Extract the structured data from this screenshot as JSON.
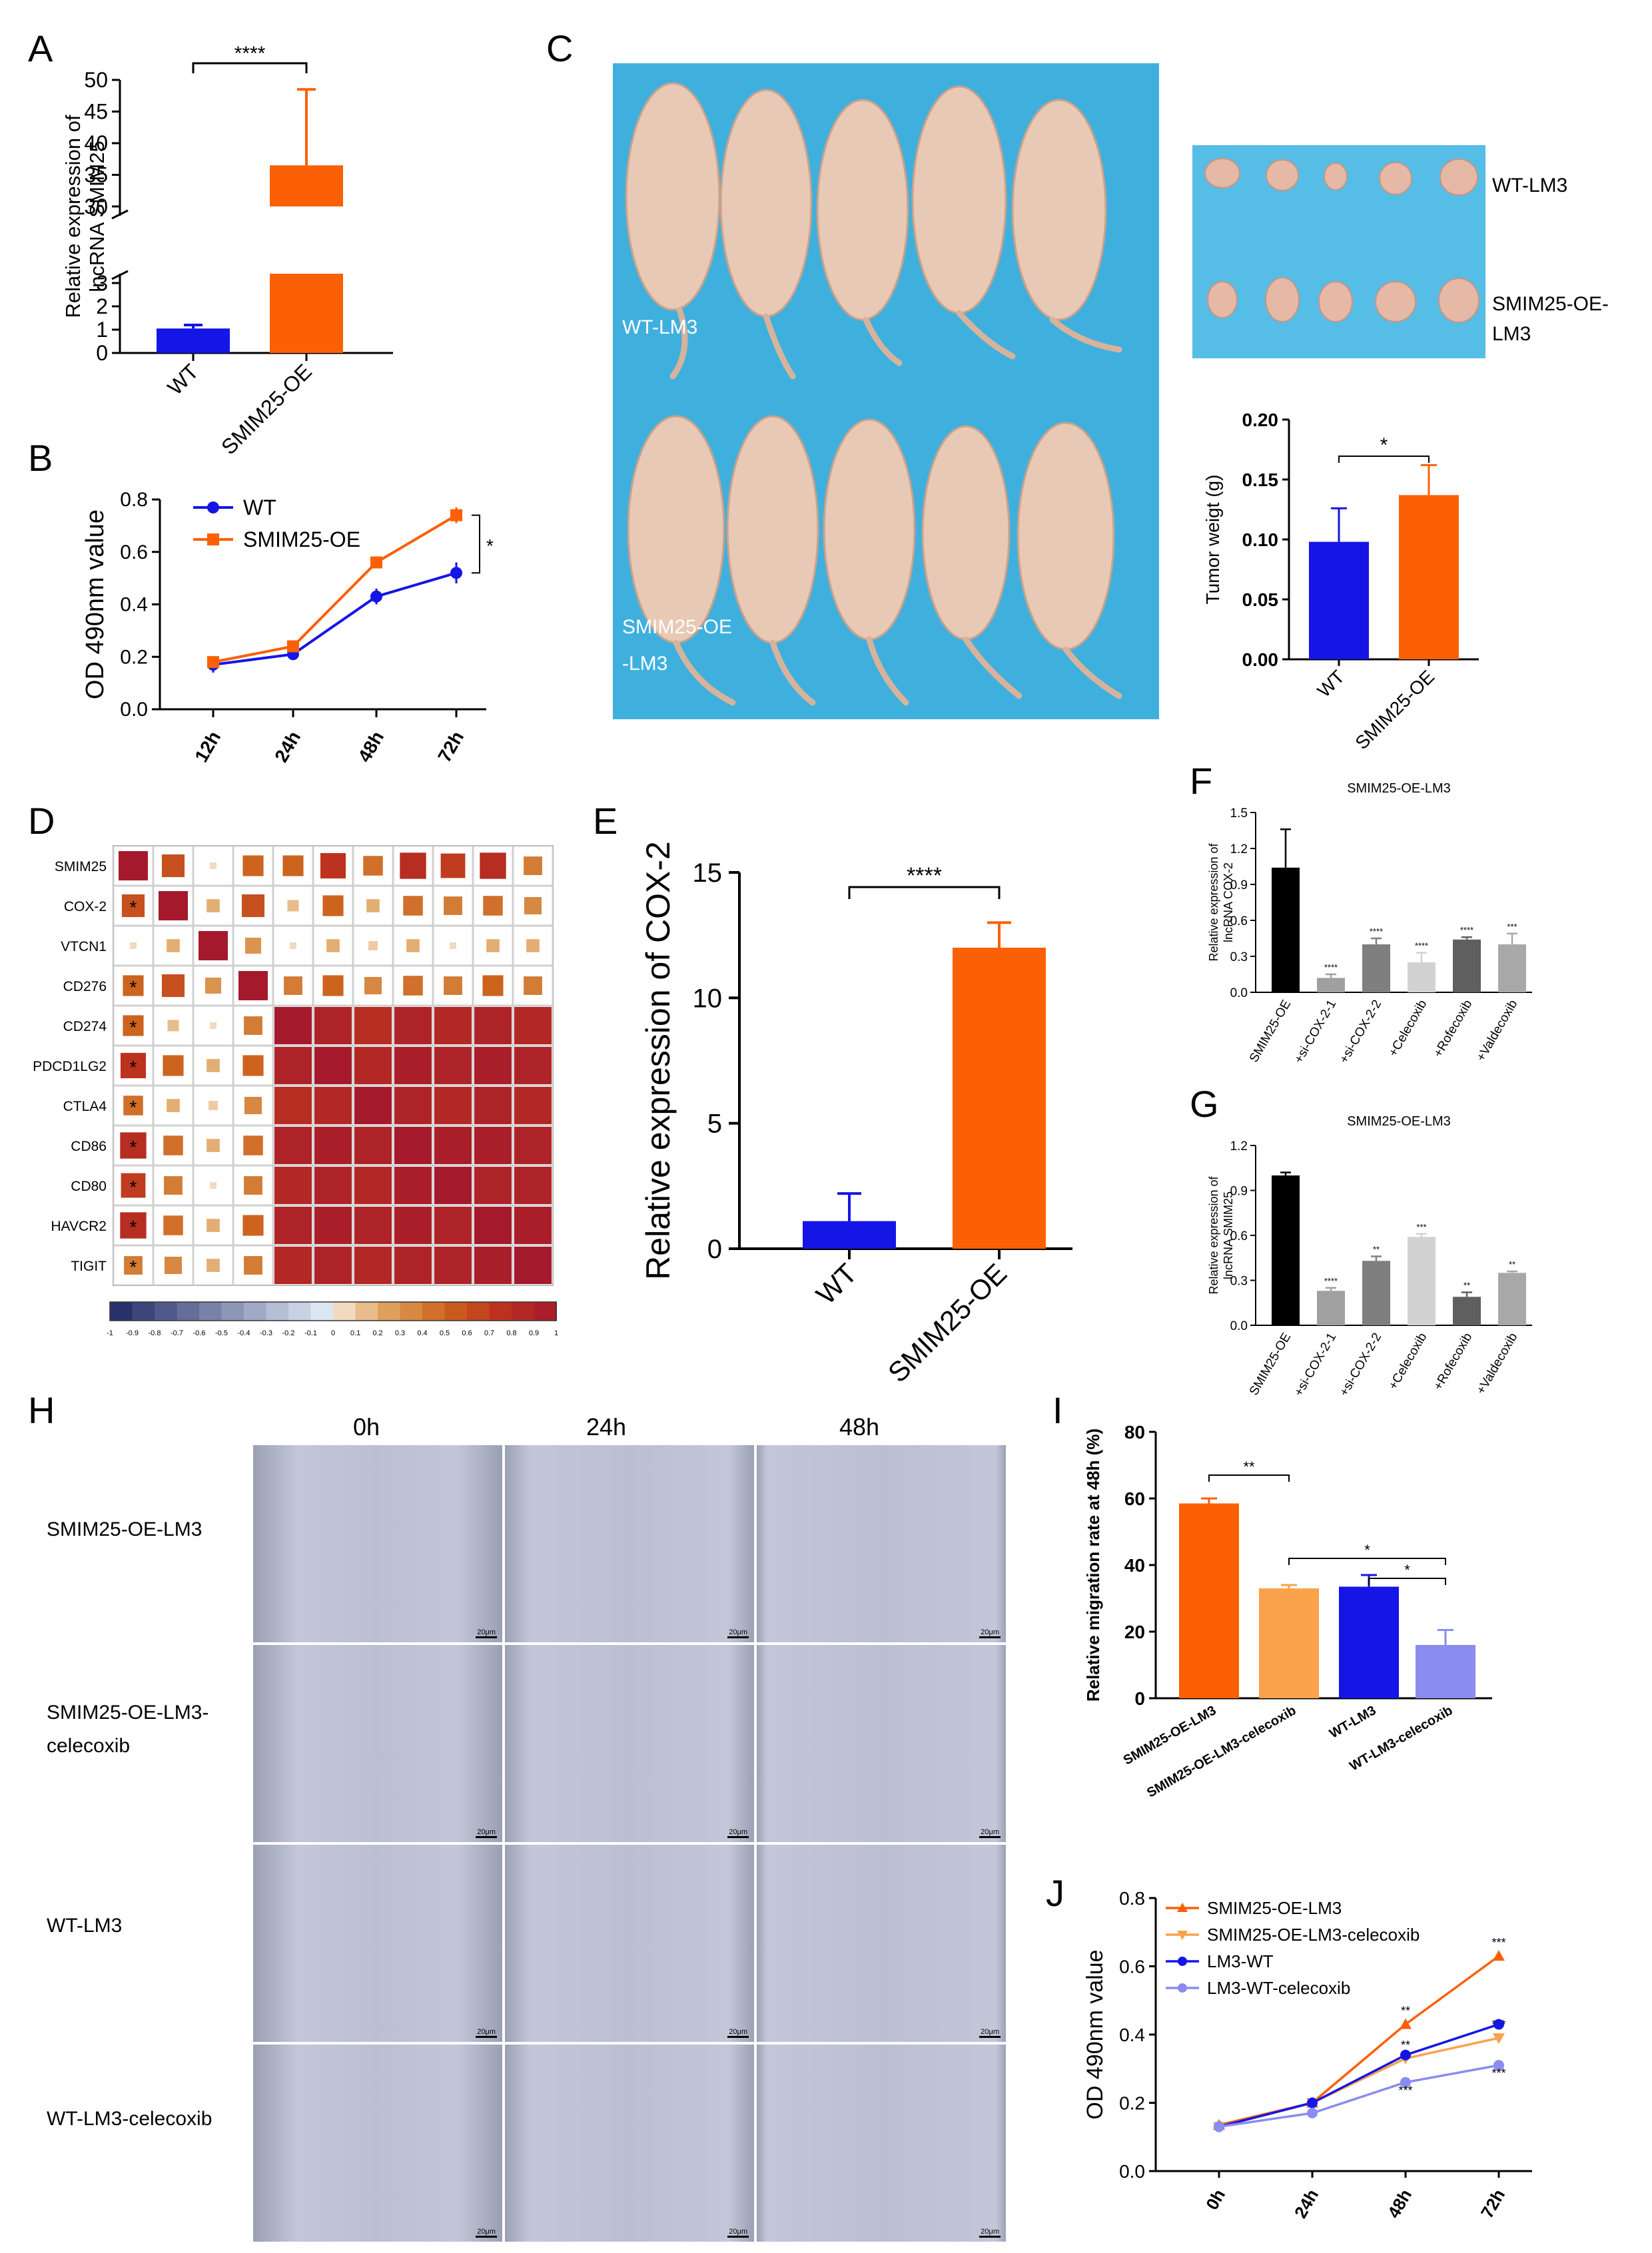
{
  "figure": {
    "panel_labels": [
      "A",
      "B",
      "C",
      "D",
      "E",
      "F",
      "G",
      "H",
      "I",
      "J"
    ]
  },
  "colors": {
    "blue": "#1515e6",
    "orange": "#fb6006",
    "lightorange": "#fba24c",
    "lightblue": "#8a8cf0",
    "black": "#000000",
    "photo_bg": "#3fb0de",
    "scratch_bg": "#b8bcd3"
  },
  "chart_data": [
    {
      "id": "A",
      "type": "bar",
      "categories": [
        "WT",
        "SMIM25-OE"
      ],
      "values": [
        1.05,
        36.5
      ],
      "errors": [
        0.15,
        12
      ],
      "ylabel": "Relative expression of lncRNA SMIM25",
      "yticks_low": [
        "0",
        "1",
        "2",
        "3"
      ],
      "yticks_high": [
        "30",
        "35",
        "40",
        "45",
        "50"
      ],
      "significance": "****"
    },
    {
      "id": "B",
      "type": "line",
      "x": [
        "12h",
        "24h",
        "48h",
        "72h"
      ],
      "series": [
        {
          "name": "WT",
          "values": [
            0.17,
            0.21,
            0.43,
            0.52
          ],
          "errors": [
            0.03,
            0.01,
            0.03,
            0.04
          ]
        },
        {
          "name": "SMIM25-OE",
          "values": [
            0.18,
            0.24,
            0.56,
            0.74
          ],
          "errors": [
            0.02,
            0.01,
            0.02,
            0.03
          ]
        }
      ],
      "ylabel": "OD 490nm value",
      "ylim": [
        0,
        0.8
      ],
      "yticks": [
        "0.0",
        "0.2",
        "0.4",
        "0.6",
        "0.8"
      ],
      "significance": "*"
    },
    {
      "id": "C",
      "type": "bar",
      "categories": [
        "WT",
        "SMIM25-OE"
      ],
      "values": [
        0.098,
        0.137
      ],
      "errors": [
        0.028,
        0.025
      ],
      "ylabel": "Tumor weigt (g)",
      "ylim": [
        0,
        0.2
      ],
      "yticks": [
        "0.00",
        "0.05",
        "0.10",
        "0.15",
        "0.20"
      ],
      "significance": "*"
    },
    {
      "id": "D",
      "type": "heatmap",
      "labels": [
        "SMIM25",
        "COX-2",
        "VTCN1",
        "CD276",
        "CD274",
        "PDCD1LG2",
        "CTLA4",
        "CD86",
        "CD80",
        "HAVCR2",
        "TIGIT"
      ],
      "matrix": [
        [
          1,
          0.6,
          0.05,
          0.5,
          0.5,
          0.75,
          0.45,
          0.8,
          0.7,
          0.8,
          0.4
        ],
        [
          0.6,
          1,
          0.2,
          0.6,
          0.15,
          0.5,
          0.2,
          0.45,
          0.4,
          0.45,
          0.35
        ],
        [
          0.05,
          0.2,
          1,
          0.3,
          0.05,
          0.2,
          0.1,
          0.2,
          0.05,
          0.2,
          0.2
        ],
        [
          0.5,
          0.6,
          0.3,
          1,
          0.4,
          0.5,
          0.35,
          0.45,
          0.4,
          0.5,
          0.4
        ],
        [
          0.5,
          0.15,
          0.05,
          0.4,
          1,
          0.9,
          0.8,
          0.9,
          0.85,
          0.9,
          0.85
        ],
        [
          0.75,
          0.5,
          0.2,
          0.5,
          0.9,
          1,
          0.85,
          0.95,
          0.9,
          0.95,
          0.9
        ],
        [
          0.45,
          0.2,
          0.1,
          0.35,
          0.8,
          0.85,
          1,
          0.9,
          0.85,
          0.9,
          0.85
        ],
        [
          0.8,
          0.45,
          0.2,
          0.45,
          0.9,
          0.95,
          0.9,
          1,
          0.95,
          0.95,
          0.9
        ],
        [
          0.7,
          0.4,
          0.05,
          0.4,
          0.85,
          0.9,
          0.85,
          0.95,
          1,
          0.9,
          0.9
        ],
        [
          0.8,
          0.45,
          0.2,
          0.5,
          0.9,
          0.95,
          0.9,
          0.95,
          0.9,
          1,
          0.95
        ],
        [
          0.4,
          0.35,
          0.2,
          0.4,
          0.85,
          0.9,
          0.85,
          0.9,
          0.9,
          0.95,
          1
        ]
      ],
      "star_rows": [
        1,
        3,
        4,
        5,
        6,
        7,
        8,
        9,
        10
      ],
      "star_label": "*",
      "scale_ticks": [
        "-1",
        "-0.9",
        "-0.8",
        "-0.7",
        "-0.6",
        "-0.5",
        "-0.4",
        "-0.3",
        "-0.2",
        "-0.1",
        "0",
        "0.1",
        "0.2",
        "0.3",
        "0.4",
        "0.5",
        "0.6",
        "0.7",
        "0.8",
        "0.9",
        "1"
      ]
    },
    {
      "id": "E",
      "type": "bar",
      "categories": [
        "WT",
        "SMIM25-OE"
      ],
      "values": [
        1.1,
        12.0
      ],
      "errors": [
        1.1,
        1.0
      ],
      "ylabel": "Relative expression of COX-2",
      "ylim": [
        0,
        15
      ],
      "yticks": [
        "0",
        "5",
        "10",
        "15"
      ],
      "significance": "****"
    },
    {
      "id": "F",
      "type": "bar",
      "title": "SMIM25-OE-LM3",
      "categories": [
        "SMIM25-OE",
        "+si-COX-2-1",
        "+si-COX-2-2",
        "+Celecoxib",
        "+Rofecoxib",
        "+Valdecoxib"
      ],
      "values": [
        1.04,
        0.12,
        0.4,
        0.25,
        0.44,
        0.4
      ],
      "errors": [
        0.32,
        0.03,
        0.05,
        0.08,
        0.02,
        0.09
      ],
      "sig": [
        "",
        "****",
        "****",
        "****",
        "****",
        "***"
      ],
      "ylabel": "Relative expression of lncRNA COX-2",
      "ylim": [
        0,
        1.5
      ],
      "yticks": [
        "0.0",
        "0.3",
        "0.6",
        "0.9",
        "1.2",
        "1.5"
      ]
    },
    {
      "id": "G",
      "type": "bar",
      "title": "SMIM25-OE-LM3",
      "categories": [
        "SMIM25-OE",
        "+si-COX-2-1",
        "+si-COX-2-2",
        "+Celecoxib",
        "+Rofecoxib",
        "+Valdecoxib"
      ],
      "values": [
        1.0,
        0.23,
        0.43,
        0.59,
        0.19,
        0.35
      ],
      "errors": [
        0.02,
        0.02,
        0.03,
        0.02,
        0.03,
        0.01
      ],
      "sig": [
        "",
        "****",
        "**",
        "***",
        "**",
        "**"
      ],
      "ylabel": "Relative expression of lncRNA SMIM25",
      "ylim": [
        0,
        1.2
      ],
      "yticks": [
        "0.0",
        "0.3",
        "0.6",
        "0.9",
        "1.2"
      ]
    },
    {
      "id": "I",
      "type": "bar",
      "categories": [
        "SMIM25-OE-LM3",
        "SMIM25-OE-LM3-celecoxib",
        "WT-LM3",
        "WT-LM3-celecoxib"
      ],
      "values": [
        58.5,
        33,
        33.5,
        16
      ],
      "errors": [
        1.5,
        1,
        3.5,
        4.5
      ],
      "ylabel": "Relative migration rate at 48h (%)",
      "ylim": [
        0,
        80
      ],
      "yticks": [
        "0",
        "20",
        "40",
        "60",
        "80"
      ],
      "brackets": [
        {
          "from": 0,
          "to": 1,
          "label": "**"
        },
        {
          "from": 1,
          "to": 3,
          "label": "*"
        },
        {
          "from": 2,
          "to": 3,
          "label": "*"
        }
      ]
    },
    {
      "id": "J",
      "type": "line",
      "x": [
        "0h",
        "24h",
        "48h",
        "72h"
      ],
      "series": [
        {
          "name": "SMIM25-OE-LM3",
          "values": [
            0.135,
            0.2,
            0.43,
            0.63
          ],
          "sig": [
            "",
            "",
            "**",
            "***"
          ]
        },
        {
          "name": "SMIM25-OE-LM3-celecoxib",
          "values": [
            0.13,
            0.2,
            0.33,
            0.39
          ],
          "sig": [
            "",
            "",
            "**",
            "***"
          ]
        },
        {
          "name": "LM3-WT",
          "values": [
            0.13,
            0.2,
            0.34,
            0.43
          ],
          "sig": [
            "",
            "",
            "",
            ""
          ]
        },
        {
          "name": "LM3-WT-celecoxib",
          "values": [
            0.13,
            0.17,
            0.26,
            0.31
          ],
          "sig": [
            "",
            "",
            "***",
            "***"
          ]
        }
      ],
      "ylabel": "OD 490nm value",
      "ylim": [
        0,
        0.8
      ],
      "yticks": [
        "0.0",
        "0.2",
        "0.4",
        "0.6",
        "0.8"
      ]
    }
  ],
  "photo_c": {
    "label_top": "WT-LM3",
    "label_bottom_1": "SMIM25-OE",
    "label_bottom_2": "-LM3",
    "tumor_label_1": "WT-LM3",
    "tumor_label_2a": "SMIM25-OE-",
    "tumor_label_2b": "LM3"
  },
  "panel_h": {
    "columns": [
      "0h",
      "24h",
      "48h"
    ],
    "rows_1": [
      "SMIM25-OE-LM3",
      "SMIM25-OE-LM3-",
      "WT-LM3",
      "WT-LM3-celecoxib"
    ],
    "row_2_line2": "celecoxib",
    "scale_bar": "20μm"
  }
}
